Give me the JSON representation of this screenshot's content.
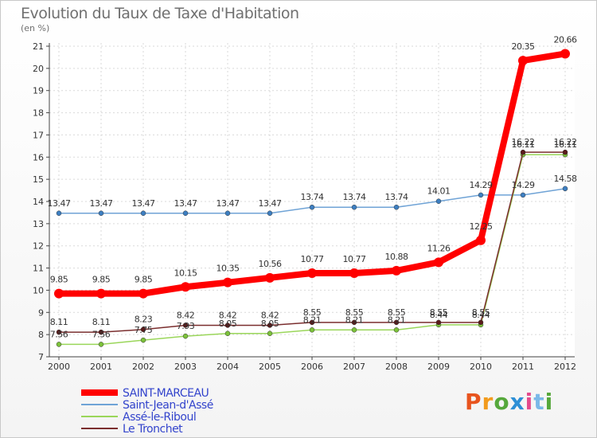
{
  "chart_data": {
    "type": "line",
    "title": "Evolution du Taux de Taxe d'Habitation",
    "subtitle": "(en %)",
    "x": [
      "2000",
      "2001",
      "2002",
      "2003",
      "2004",
      "2005",
      "2006",
      "2007",
      "2008",
      "2009",
      "2010",
      "2011",
      "2012"
    ],
    "yticks": [
      "7",
      "8",
      "9",
      "10",
      "11",
      "12",
      "13",
      "14",
      "15",
      "16",
      "17",
      "18",
      "19",
      "20",
      "21"
    ],
    "ylim": [
      7,
      21
    ],
    "grid": true,
    "legend_position": "bottom-left",
    "series": [
      {
        "name": "SAINT-MARCEAU",
        "color": "#ff0000",
        "width": 8,
        "values": [
          9.85,
          9.85,
          9.85,
          10.15,
          10.35,
          10.56,
          10.77,
          10.77,
          10.88,
          11.26,
          12.25,
          20.35,
          20.66
        ],
        "labels": [
          "9.85",
          "9.85",
          "9.85",
          "10.15",
          "10.35",
          "10.56",
          "10.77",
          "10.77",
          "10.88",
          "11.26",
          "12.25",
          "20.35",
          "20.66"
        ]
      },
      {
        "name": "Saint-Jean-d'Assé",
        "color": "#6fa3d6",
        "width": 1.5,
        "values": [
          13.47,
          13.47,
          13.47,
          13.47,
          13.47,
          13.47,
          13.74,
          13.74,
          13.74,
          14.01,
          14.29,
          14.29,
          14.58
        ],
        "labels": [
          "13.47",
          "13.47",
          "13.47",
          "13.47",
          "13.47",
          "13.47",
          "13.74",
          "13.74",
          "13.74",
          "14.01",
          "14.29",
          "14.29",
          "14.58"
        ]
      },
      {
        "name": "Assé-le-Riboul",
        "color": "#9ad65a",
        "width": 1.5,
        "values": [
          7.56,
          7.56,
          7.75,
          7.93,
          8.05,
          8.05,
          8.21,
          8.21,
          8.21,
          8.44,
          8.44,
          16.11,
          16.11
        ],
        "labels": [
          "7.56",
          "7.56",
          "7.75",
          "7.93",
          "8.05",
          "8.05",
          "8.21",
          "8.21",
          "8.21",
          "8.44",
          "8.44",
          "16.11",
          "16.11"
        ]
      },
      {
        "name": "Le Tronchet",
        "color": "#7a2e2e",
        "width": 1.5,
        "values": [
          8.11,
          8.11,
          8.23,
          8.42,
          8.42,
          8.42,
          8.55,
          8.55,
          8.55,
          8.55,
          8.55,
          16.22,
          16.22
        ],
        "labels": [
          "8.11",
          "8.11",
          "8.23",
          "8.42",
          "8.42",
          "8.42",
          "8.55",
          "8.55",
          "8.55",
          "8.55",
          "8.55",
          "16.22",
          "16.22"
        ]
      }
    ]
  },
  "brand": {
    "logo_letters": [
      "P",
      "r",
      "o",
      "x",
      "i",
      "t",
      "i"
    ]
  }
}
